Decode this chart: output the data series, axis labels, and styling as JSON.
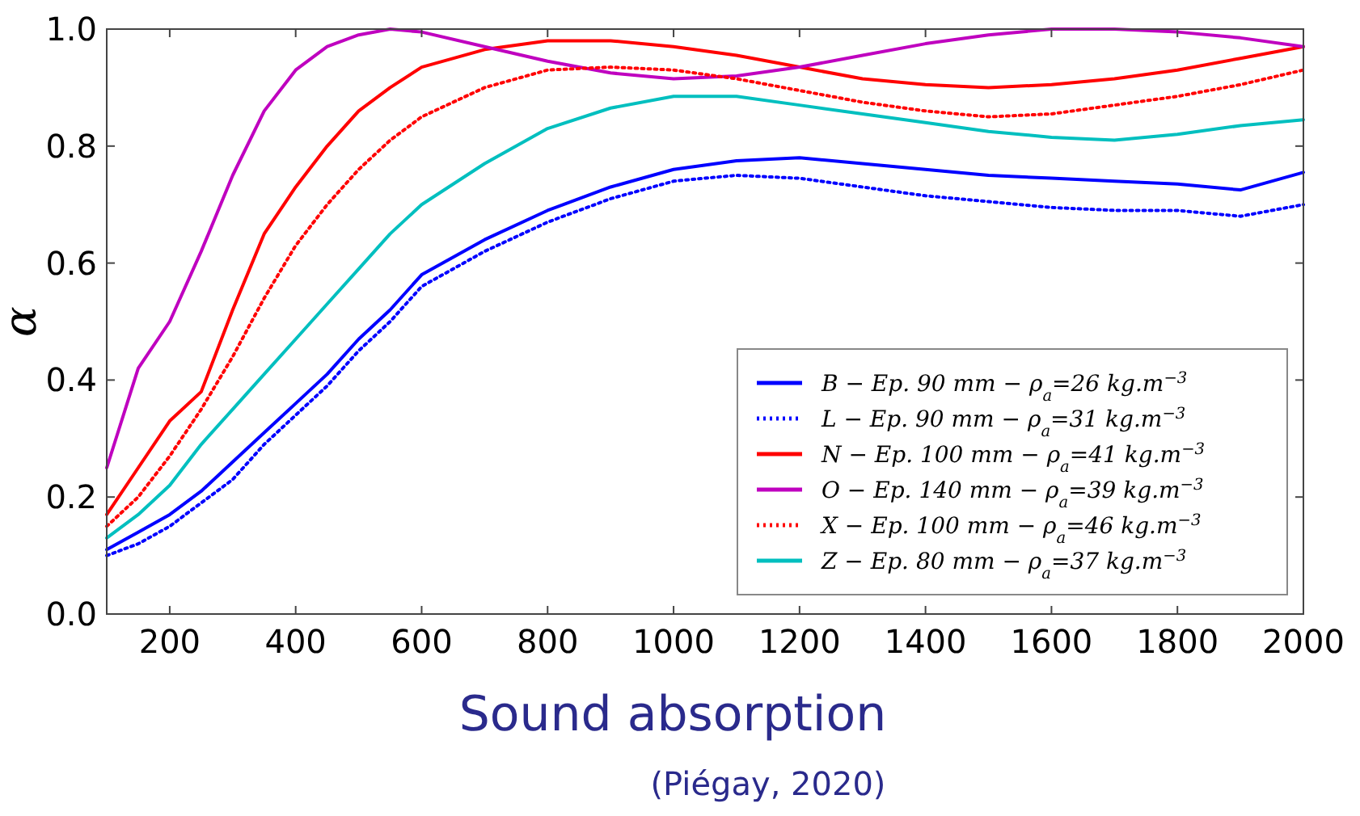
{
  "chart_data": {
    "type": "line",
    "title": "Sound absorption",
    "ylabel": "α",
    "annotations": [
      "(Piégay, 2020)"
    ],
    "x": [
      100,
      150,
      200,
      250,
      300,
      350,
      400,
      450,
      500,
      550,
      600,
      700,
      800,
      900,
      1000,
      1100,
      1200,
      1300,
      1400,
      1500,
      1600,
      1700,
      1800,
      1900,
      2000
    ],
    "xlim": [
      100,
      2000
    ],
    "xticks": [
      200,
      400,
      600,
      800,
      1000,
      1200,
      1400,
      1600,
      1800,
      2000
    ],
    "ylim": [
      0,
      1
    ],
    "yticks": [
      {
        "value": 0,
        "label": "0.0"
      },
      {
        "value": 0.2,
        "label": "0.2"
      },
      {
        "value": 0.4,
        "label": "0.4"
      },
      {
        "value": 0.6,
        "label": "0.6"
      },
      {
        "value": 0.8,
        "label": "0.8"
      },
      {
        "value": 1,
        "label": "1.0"
      }
    ],
    "grid": false,
    "legend": "bottom right",
    "series": [
      {
        "name": "B − Ep. 90 mm − ρ$_{a}$=26 kg.m$^{−3}$",
        "color": "#0000ff",
        "line_style": "solid",
        "values": [
          0.11,
          0.14,
          0.17,
          0.21,
          0.26,
          0.31,
          0.36,
          0.41,
          0.47,
          0.52,
          0.58,
          0.64,
          0.69,
          0.73,
          0.76,
          0.775,
          0.78,
          0.77,
          0.76,
          0.75,
          0.745,
          0.74,
          0.735,
          0.725,
          0.755
        ]
      },
      {
        "name": "L − Ep. 90 mm − ρ$_{a}$=31 kg.m$^{−3}$",
        "color": "#0000ff",
        "line_style": "dotted",
        "values": [
          0.1,
          0.12,
          0.15,
          0.19,
          0.23,
          0.29,
          0.34,
          0.39,
          0.45,
          0.5,
          0.56,
          0.62,
          0.67,
          0.71,
          0.74,
          0.75,
          0.745,
          0.73,
          0.715,
          0.705,
          0.695,
          0.69,
          0.69,
          0.68,
          0.7
        ]
      },
      {
        "name": "N − Ep. 100 mm − ρ$_{a}$=41 kg.m$^{−3}$",
        "color": "#ff0000",
        "line_style": "solid",
        "values": [
          0.17,
          0.25,
          0.33,
          0.38,
          0.52,
          0.65,
          0.73,
          0.8,
          0.86,
          0.9,
          0.935,
          0.965,
          0.98,
          0.98,
          0.97,
          0.955,
          0.935,
          0.915,
          0.905,
          0.9,
          0.905,
          0.915,
          0.93,
          0.95,
          0.97
        ]
      },
      {
        "name": "O − Ep. 140 mm − ρ$_{a}$=39 kg.m$^{−3}$",
        "color": "#bf00bf",
        "line_style": "solid",
        "values": [
          0.25,
          0.42,
          0.5,
          0.62,
          0.75,
          0.86,
          0.93,
          0.97,
          0.99,
          1,
          0.995,
          0.97,
          0.945,
          0.925,
          0.915,
          0.92,
          0.935,
          0.955,
          0.975,
          0.99,
          1,
          1,
          0.995,
          0.985,
          0.97
        ]
      },
      {
        "name": "X − Ep. 100 mm − ρ$_{a}$=46 kg.m$^{−3}$",
        "color": "#ff0000",
        "line_style": "dotted",
        "values": [
          0.15,
          0.2,
          0.27,
          0.35,
          0.44,
          0.54,
          0.63,
          0.7,
          0.76,
          0.81,
          0.85,
          0.9,
          0.93,
          0.935,
          0.93,
          0.915,
          0.895,
          0.875,
          0.86,
          0.85,
          0.855,
          0.87,
          0.885,
          0.905,
          0.93
        ]
      },
      {
        "name": "Z − Ep. 80 mm − ρ$_{a}$=37 kg.m$^{−3}$",
        "color": "#00bfbf",
        "line_style": "solid",
        "values": [
          0.13,
          0.17,
          0.22,
          0.29,
          0.35,
          0.41,
          0.47,
          0.53,
          0.59,
          0.65,
          0.7,
          0.77,
          0.83,
          0.865,
          0.885,
          0.885,
          0.87,
          0.855,
          0.84,
          0.825,
          0.815,
          0.81,
          0.82,
          0.835,
          0.845
        ]
      }
    ]
  }
}
